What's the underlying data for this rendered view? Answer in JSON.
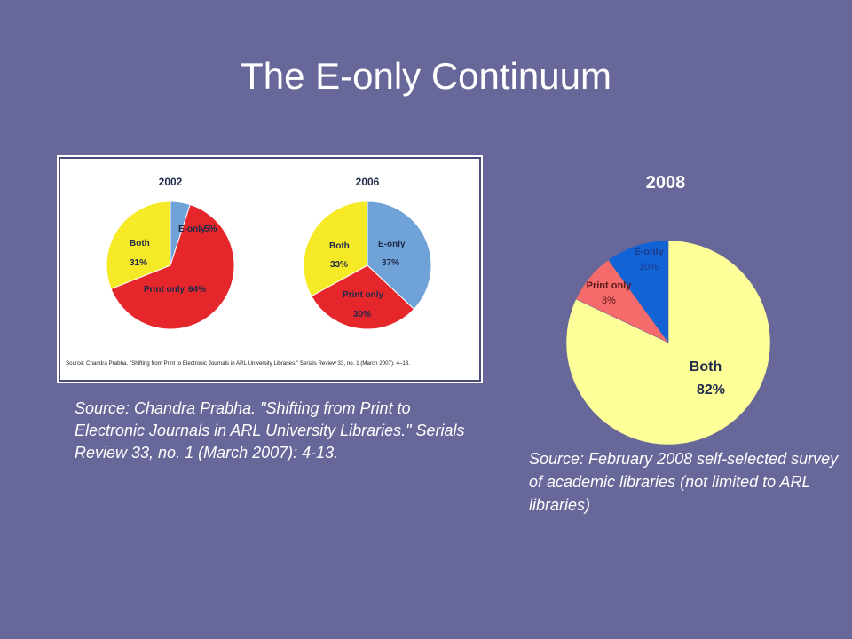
{
  "slide": {
    "title": "The E-only Continuum",
    "source_left": "Source: Chandra Prabha. \"Shifting from Print to Electronic Journals in ARL University Libraries.\" Serials Review 33, no. 1 (March 2007): 4-13.",
    "source_right": "Source: February 2008 self-selected survey of academic  libraries (not limited to ARL libraries)",
    "figure_citation": "Source: Chandra Prabha. \"Shifting from Print to Electronic Journals in ARL University Libraries.\" Serials Review 33, no. 1 (March 2007): 4–13."
  },
  "colors": {
    "background": "#67679a",
    "eonly_figure": "#6fa3d8",
    "print_figure": "#e5262b",
    "both_figure": "#f6e926",
    "eonly_2008": "#1263d6",
    "print_2008": "#f56a6a",
    "both_2008": "#ffff99"
  },
  "chart_data": [
    {
      "type": "pie",
      "title": "2002",
      "slices": [
        {
          "label": "E-only",
          "value": 5,
          "display": "5%"
        },
        {
          "label": "Print only",
          "value": 64,
          "display": "64%"
        },
        {
          "label": "Both",
          "value": 31,
          "display": "31%"
        }
      ]
    },
    {
      "type": "pie",
      "title": "2006",
      "slices": [
        {
          "label": "E-only",
          "value": 37,
          "display": "37%"
        },
        {
          "label": "Print only",
          "value": 30,
          "display": "30%"
        },
        {
          "label": "Both",
          "value": 33,
          "display": "33%"
        }
      ]
    },
    {
      "type": "pie",
      "title": "2008",
      "slices": [
        {
          "label": "E-only",
          "value": 10,
          "display": "10%"
        },
        {
          "label": "Print only",
          "value": 8,
          "display": "8%"
        },
        {
          "label": "Both",
          "value": 82,
          "display": "82%"
        }
      ]
    }
  ]
}
